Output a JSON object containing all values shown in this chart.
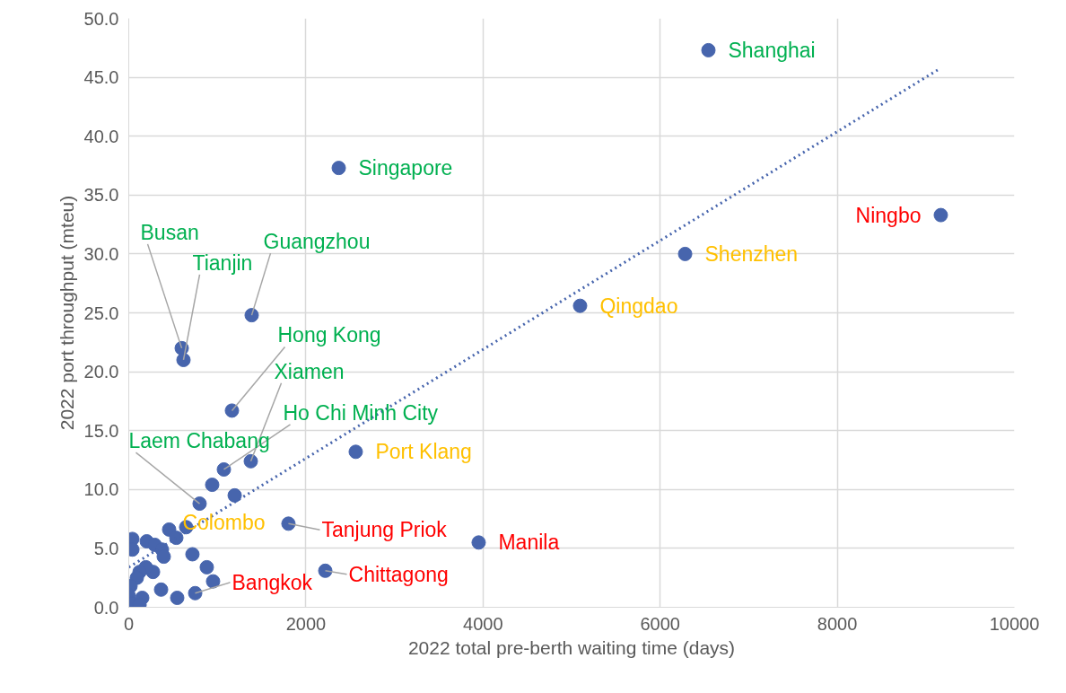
{
  "chart_data": {
    "type": "scatter",
    "xlabel": "2022 total pre-berth waiting time (days)",
    "ylabel": "2022 port throughput (mteu)",
    "xlim": [
      0,
      10000
    ],
    "xticks": [
      0,
      2000,
      4000,
      6000,
      8000,
      10000
    ],
    "ylim": [
      0,
      50
    ],
    "yticks": [
      {
        "value": 0,
        "label": "0.0"
      },
      {
        "value": 5,
        "label": "5.0"
      },
      {
        "value": 10,
        "label": "10.0"
      },
      {
        "value": 15,
        "label": "15.0"
      },
      {
        "value": 20,
        "label": "20.0"
      },
      {
        "value": 25,
        "label": "25.0"
      },
      {
        "value": 30,
        "label": "30.0"
      },
      {
        "value": 35,
        "label": "35.0"
      },
      {
        "value": 40,
        "label": "40.0"
      },
      {
        "value": 45,
        "label": "45.0"
      },
      {
        "value": 50,
        "label": "50.0"
      }
    ],
    "grid": true,
    "marker": "circle",
    "series": [
      {
        "color": "#4765ad",
        "x": [
          6545,
          2371,
          9169,
          6282,
          5096,
          1388,
          598,
          618,
          1165,
          1378,
          1074,
          2563,
          800,
          648,
          1803,
          3951,
          2219,
          750,
          942,
          1196,
          456,
          537,
          41,
          41,
          203,
          294,
          375,
          395,
          719,
          881,
          952,
          547,
          365,
          274,
          193,
          122,
          91,
          20,
          0,
          41,
          152,
          122
        ],
        "values": [
          47.3,
          37.3,
          33.3,
          30.0,
          25.6,
          24.8,
          22.0,
          21.0,
          16.7,
          12.4,
          11.7,
          13.2,
          8.8,
          6.8,
          7.1,
          5.5,
          3.1,
          1.2,
          10.4,
          9.5,
          6.6,
          5.9,
          5.8,
          4.9,
          5.6,
          5.3,
          4.9,
          4.3,
          4.5,
          3.4,
          2.2,
          0.8,
          1.5,
          3.0,
          3.4,
          3.0,
          2.5,
          1.8,
          1.0,
          0.3,
          0.8,
          0.2
        ]
      },
      {
        "type": "line",
        "color": "#4765ad",
        "line_style": "dotted",
        "marker": "none",
        "x": [
          0,
          9150
        ],
        "values": [
          3.4,
          45.7
        ]
      }
    ],
    "annotations": [
      {
        "text": "Shanghai",
        "x": 6545,
        "y": 47.3
      },
      {
        "text": "Singapore",
        "x": 2371,
        "y": 37.3
      },
      {
        "text": "Ningbo",
        "x": 9169,
        "y": 33.3
      },
      {
        "text": "Shenzhen",
        "x": 6282,
        "y": 30.0
      },
      {
        "text": "Qingdao",
        "x": 5096,
        "y": 25.6
      },
      {
        "text": "Guangzhou",
        "x": 1388,
        "y": 24.8
      },
      {
        "text": "Busan",
        "x": 598,
        "y": 22.0
      },
      {
        "text": "Tianjin",
        "x": 618,
        "y": 21.0
      },
      {
        "text": "Hong Kong",
        "x": 1165,
        "y": 16.7
      },
      {
        "text": "Xiamen",
        "x": 1378,
        "y": 12.4
      },
      {
        "text": "Ho Chi Minh City",
        "x": 1074,
        "y": 11.7
      },
      {
        "text": "Laem Chabang",
        "x": 800,
        "y": 8.8
      },
      {
        "text": "Colombo",
        "x": 648,
        "y": 6.8
      },
      {
        "text": "Port Klang",
        "x": 2563,
        "y": 13.2
      },
      {
        "text": "Tanjung Priok",
        "x": 1803,
        "y": 7.1
      },
      {
        "text": "Manila",
        "x": 3951,
        "y": 5.5
      },
      {
        "text": "Chittagong",
        "x": 2219,
        "y": 3.1
      },
      {
        "text": "Bangkok",
        "x": 750,
        "y": 1.2
      }
    ]
  }
}
